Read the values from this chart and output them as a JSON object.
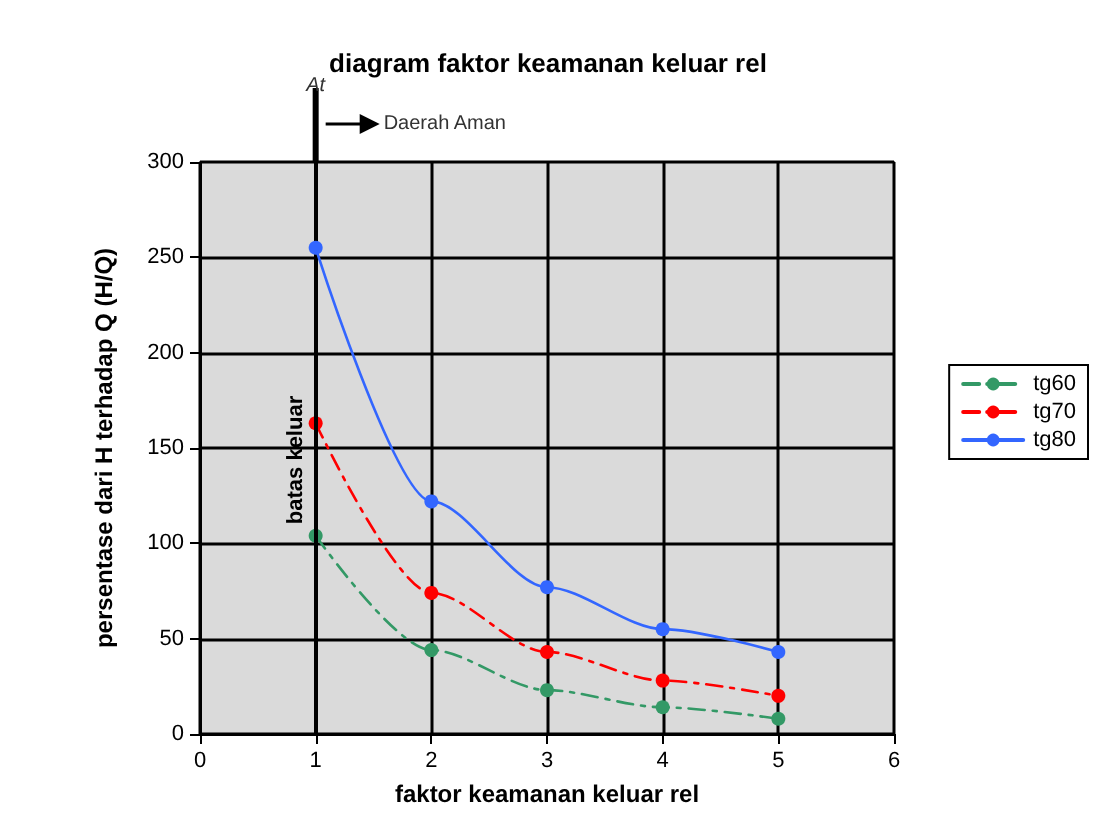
{
  "chart_data": {
    "type": "line",
    "title": "diagram faktor keamanan keluar rel",
    "xlabel": "faktor keamanan keluar rel",
    "ylabel": "persentase dari H terhadap Q (H/Q)",
    "x": [
      1,
      2,
      3,
      4,
      5
    ],
    "series": [
      {
        "name": "tg60",
        "color": "#339966",
        "line_style": "dashed",
        "values": [
          104,
          44,
          23,
          14,
          8
        ]
      },
      {
        "name": "tg70",
        "color": "#ff0000",
        "line_style": "dashed",
        "values": [
          163,
          74,
          43,
          28,
          20
        ]
      },
      {
        "name": "tg80",
        "color": "#3366ff",
        "line_style": "solid",
        "values": [
          255,
          122,
          77,
          55,
          43
        ]
      }
    ],
    "xlim": [
      0,
      6
    ],
    "xticks": [
      0,
      1,
      2,
      3,
      4,
      5,
      6
    ],
    "ylim": [
      0,
      300
    ],
    "yticks": [
      0,
      50,
      100,
      150,
      200,
      250,
      300
    ],
    "grid": true,
    "legend": "right",
    "marker": "circle",
    "ref_lines": [
      {
        "axis": "x",
        "value": 1,
        "label": "batas keluar",
        "color": "#000000"
      }
    ],
    "annotations": [
      "At",
      "Daerah Aman"
    ]
  }
}
